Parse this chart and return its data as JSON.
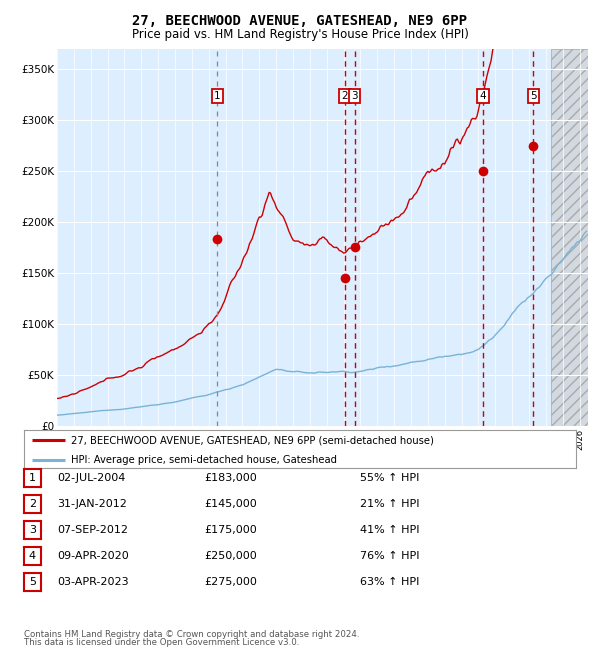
{
  "title": "27, BEECHWOOD AVENUE, GATESHEAD, NE9 6PP",
  "subtitle": "Price paid vs. HM Land Registry's House Price Index (HPI)",
  "legend_line1": "27, BEECHWOOD AVENUE, GATESHEAD, NE9 6PP (semi-detached house)",
  "legend_line2": "HPI: Average price, semi-detached house, Gateshead",
  "footer1": "Contains HM Land Registry data © Crown copyright and database right 2024.",
  "footer2": "This data is licensed under the Open Government Licence v3.0.",
  "hpi_color": "#7ab3d6",
  "price_color": "#cc0000",
  "bg_color": "#ddeeff",
  "grid_color": "#ffffff",
  "purchases": [
    {
      "label": "1",
      "date": 2004.5,
      "price": 183000,
      "vline_color": "#888888"
    },
    {
      "label": "2",
      "date": 2012.08,
      "price": 145000,
      "vline_color": "#cc0000"
    },
    {
      "label": "3",
      "date": 2012.67,
      "price": 175000,
      "vline_color": "#cc0000"
    },
    {
      "label": "4",
      "date": 2020.27,
      "price": 250000,
      "vline_color": "#cc0000"
    },
    {
      "label": "5",
      "date": 2023.25,
      "price": 275000,
      "vline_color": "#cc0000"
    }
  ],
  "table_rows": [
    [
      "1",
      "02-JUL-2004",
      "£183,000",
      "55% ↑ HPI"
    ],
    [
      "2",
      "31-JAN-2012",
      "£145,000",
      "21% ↑ HPI"
    ],
    [
      "3",
      "07-SEP-2012",
      "£175,000",
      "41% ↑ HPI"
    ],
    [
      "4",
      "09-APR-2020",
      "£250,000",
      "76% ↑ HPI"
    ],
    [
      "5",
      "03-APR-2023",
      "£275,000",
      "63% ↑ HPI"
    ]
  ],
  "xmin": 1995.0,
  "xmax": 2026.5,
  "ymin": 0,
  "ymax": 370000,
  "future_start": 2024.33,
  "yticks": [
    0,
    50000,
    100000,
    150000,
    200000,
    250000,
    300000,
    350000
  ],
  "ytick_labels": [
    "£0",
    "£50K",
    "£100K",
    "£150K",
    "£200K",
    "£250K",
    "£300K",
    "£350K"
  ]
}
